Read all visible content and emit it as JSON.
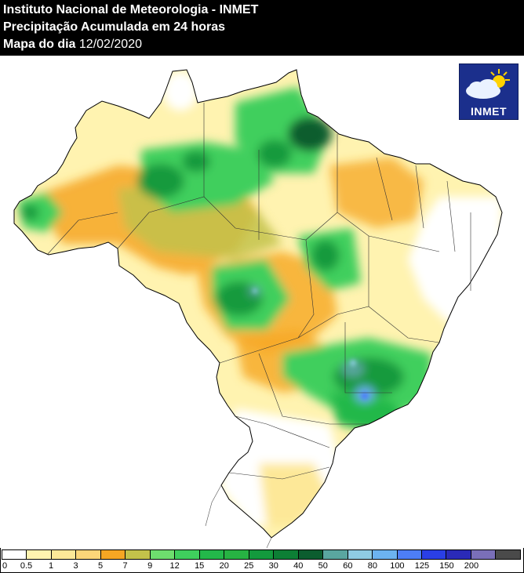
{
  "header": {
    "line1": "Instituto Nacional de Meteorologia - INMET",
    "line2": "Precipitação Acumulada em 24 horas",
    "line3_label": "Mapa do dia",
    "line3_date": "12/02/2020"
  },
  "logo": {
    "text": "INMET",
    "icon": "sun-cloud-icon"
  },
  "legend": {
    "unit_ticks": [
      "0",
      "0.5",
      "1",
      "3",
      "5",
      "7",
      "9",
      "12",
      "15",
      "20",
      "25",
      "30",
      "40",
      "50",
      "60",
      "80",
      "100",
      "125",
      "150",
      "200"
    ],
    "colors": [
      "#ffffff",
      "#fff3b0",
      "#fde898",
      "#fcd679",
      "#f6a623",
      "#c3c24a",
      "#6ede6e",
      "#3fcf5d",
      "#23b84a",
      "#27b343",
      "#139a3d",
      "#0d7f35",
      "#0c5d2f",
      "#5aa6a0",
      "#8fcbe3",
      "#6cb3f0",
      "#4d7ef7",
      "#2a3fe6",
      "#2a2ab8",
      "#7a6fb8",
      "#4a4a4a"
    ]
  },
  "colors": {
    "header_bg": "#000000",
    "header_text": "#ffffff",
    "logo_bg": "#1b2f8c"
  }
}
